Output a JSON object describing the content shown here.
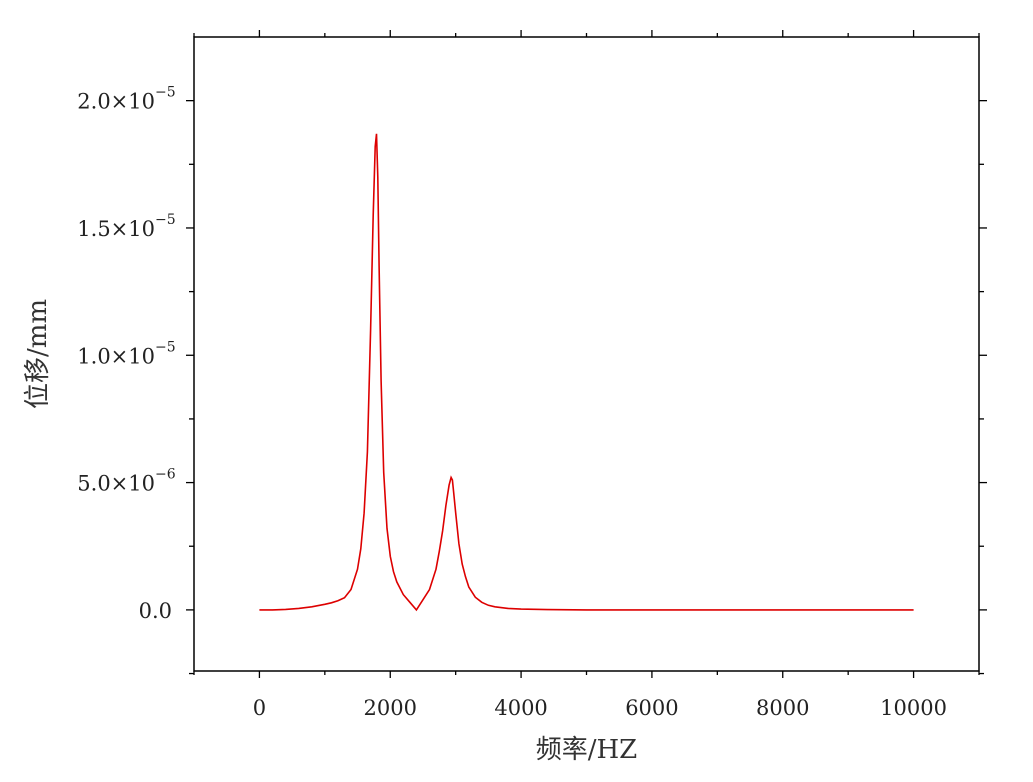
{
  "chart_data": {
    "type": "line",
    "xlabel": "频率/HZ",
    "ylabel": "位移/mm",
    "xlim": [
      -1000,
      11000
    ],
    "ylim": [
      -2.4e-06,
      2.25e-05
    ],
    "x_ticks": [
      0,
      2000,
      4000,
      6000,
      8000,
      10000
    ],
    "y_ticks": [
      {
        "value": 0,
        "mantissa": "0.0",
        "exponent": ""
      },
      {
        "value": 5e-06,
        "mantissa": "5.0×10",
        "exponent": "−6"
      },
      {
        "value": 1e-05,
        "mantissa": "1.0×10",
        "exponent": "−5"
      },
      {
        "value": 1.5e-05,
        "mantissa": "1.5×10",
        "exponent": "−5"
      },
      {
        "value": 2e-05,
        "mantissa": "2.0×10",
        "exponent": "−5"
      }
    ],
    "grid": false,
    "line_color": "#dd0000",
    "series": [
      {
        "x": [
          0,
          200,
          400,
          600,
          800,
          1000,
          1100,
          1200,
          1300,
          1400,
          1500,
          1550,
          1600,
          1650,
          1700,
          1740,
          1770,
          1790,
          1810,
          1830,
          1860,
          1900,
          1950,
          2000,
          2050,
          2100,
          2200,
          2300,
          2400,
          2500,
          2600,
          2700,
          2750,
          2800,
          2850,
          2900,
          2930,
          2950,
          2970,
          3000,
          3050,
          3100,
          3150,
          3200,
          3300,
          3400,
          3500,
          3600,
          3800,
          4000,
          4400,
          5000,
          6000,
          7000,
          8000,
          9000,
          10000
        ],
        "y": [
          0,
          0,
          2e-08,
          6e-08,
          1.2e-07,
          2.2e-07,
          2.8e-07,
          3.6e-07,
          4.8e-07,
          8e-07,
          1.6e-06,
          2.4e-06,
          3.8e-06,
          6.2e-06,
          1.1e-05,
          1.55e-05,
          1.82e-05,
          1.87e-05,
          1.7e-05,
          1.35e-05,
          9e-06,
          5.4e-06,
          3.2e-06,
          2.1e-06,
          1.5e-06,
          1.1e-06,
          6e-07,
          3e-07,
          0,
          4e-07,
          8e-07,
          1.6e-06,
          2.3e-06,
          3.1e-06,
          4.1e-06,
          4.9e-06,
          5.2e-06,
          5.1e-06,
          4.6e-06,
          3.8e-06,
          2.6e-06,
          1.8e-06,
          1.3e-06,
          9e-07,
          5e-07,
          3e-07,
          1.8e-07,
          1.2e-07,
          6e-08,
          3e-08,
          1e-08,
          0,
          0,
          0,
          0,
          0,
          0
        ]
      }
    ]
  }
}
